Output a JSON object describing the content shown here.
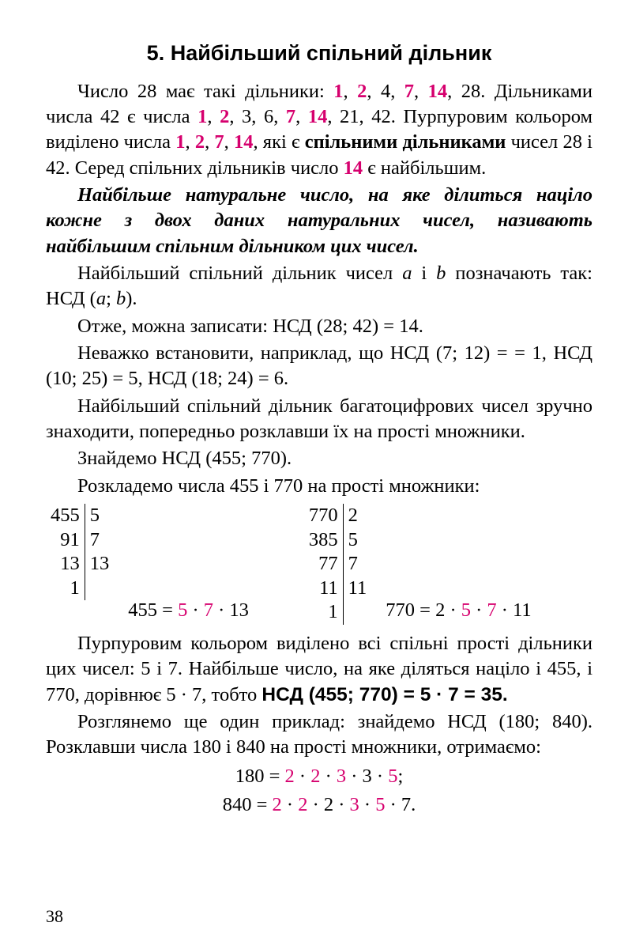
{
  "colors": {
    "text": "#000000",
    "highlight": "#d6006e",
    "background": "#ffffff"
  },
  "typography": {
    "body_family": "Georgia serif",
    "body_size_pt": 18,
    "title_family": "Arial sans-serif",
    "title_size_pt": 20
  },
  "title": "5. Найбільший спільний дільник",
  "para1": {
    "t1": "Число 28 має такі дільники: ",
    "h1": "1",
    "c1": ", ",
    "h2": "2",
    "c2": ", 4, ",
    "h3": "7",
    "c3": ", ",
    "h4": "14",
    "c4": ", 28. Дільниками числа 42 є числа ",
    "h5": "1",
    "c5": ", ",
    "h6": "2",
    "c6": ", 3, 6, ",
    "h7": "7",
    "c7": ", ",
    "h8": "14",
    "c8": ", 21, 42. Пурпуровим кольором виділено числа ",
    "h9": "1",
    "c9": ", ",
    "h10": "2",
    "c10": ", ",
    "h11": "7",
    "c11": ", ",
    "h12": "14",
    "t2": ", які є ",
    "b1": "спільними дільниками",
    "t3": " чисел 28 і 42. Серед спільних дільників число ",
    "h13": "14",
    "t4": " є найбільшим."
  },
  "definition": "Найбільше натуральне число, на яке ділиться націло кожне з двох даних натуральних чисел, називають найбільшим спільним дільником цих чисел.",
  "para3a": "Найбільший спільний дільник чисел ",
  "para3_i1": "a",
  "para3b": " і ",
  "para3_i2": "b",
  "para3c": " позначають так: НСД (",
  "para3_i3": "a",
  "para3d": "; ",
  "para3_i4": "b",
  "para3e": ").",
  "para4": "Отже, можна записати: НСД (28; 42) = 14.",
  "para5": "Неважко встановити, наприклад, що НСД (7; 12) = = 1, НСД (10; 25) = 5, НСД (18; 24) = 6.",
  "para6": "Найбільший спільний дільник багатоцифрових чисел зручно знаходити, попередньо розклавши їх на прості множники.",
  "para7": "Знайдемо НСД (455; 770).",
  "para8": "Розкладемо числа 455 і 770 на прості множники:",
  "factor455": {
    "rows": [
      [
        "455",
        "5"
      ],
      [
        "91",
        "7"
      ],
      [
        "13",
        "13"
      ],
      [
        "1",
        ""
      ]
    ],
    "eq_pre": "455 = ",
    "eq_h1": "5",
    "eq_m1": " · ",
    "eq_h2": "7",
    "eq_post": " · 13"
  },
  "factor770": {
    "rows": [
      [
        "770",
        "2"
      ],
      [
        "385",
        "5"
      ],
      [
        "77",
        "7"
      ],
      [
        "11",
        "11"
      ],
      [
        "1",
        ""
      ]
    ],
    "eq_pre": "770 = 2 · ",
    "eq_h1": "5",
    "eq_m1": " · ",
    "eq_h2": "7",
    "eq_post": " · 11"
  },
  "para9a": "Пурпуровим кольором виділено всі спільні прості дільники цих чисел: 5 і 7. Найбільше число, на яке діляться націло і 455, і 770, дорівнює 5 · 7, тобто  ",
  "para9b": "НСД (455; 770) = 5 · 7 = 35.",
  "para10": "Розглянемо ще один приклад: знайдемо НСД (180; 840). Розклавши числа 180 і 840 на прості множники, отримаємо:",
  "eq180": {
    "pre": "180 = ",
    "h1": "2",
    "m1": " · ",
    "h2": "2",
    "m2": " · ",
    "h3": "3",
    "m3": " · 3 · ",
    "h4": "5",
    "post": ";"
  },
  "eq840": {
    "pre": "840 = ",
    "h1": "2",
    "m1": " · ",
    "h2": "2",
    "m2": " · 2 · ",
    "h3": "3",
    "m3": " · ",
    "h4": "5",
    "post": " · 7."
  },
  "pagenum": "38"
}
